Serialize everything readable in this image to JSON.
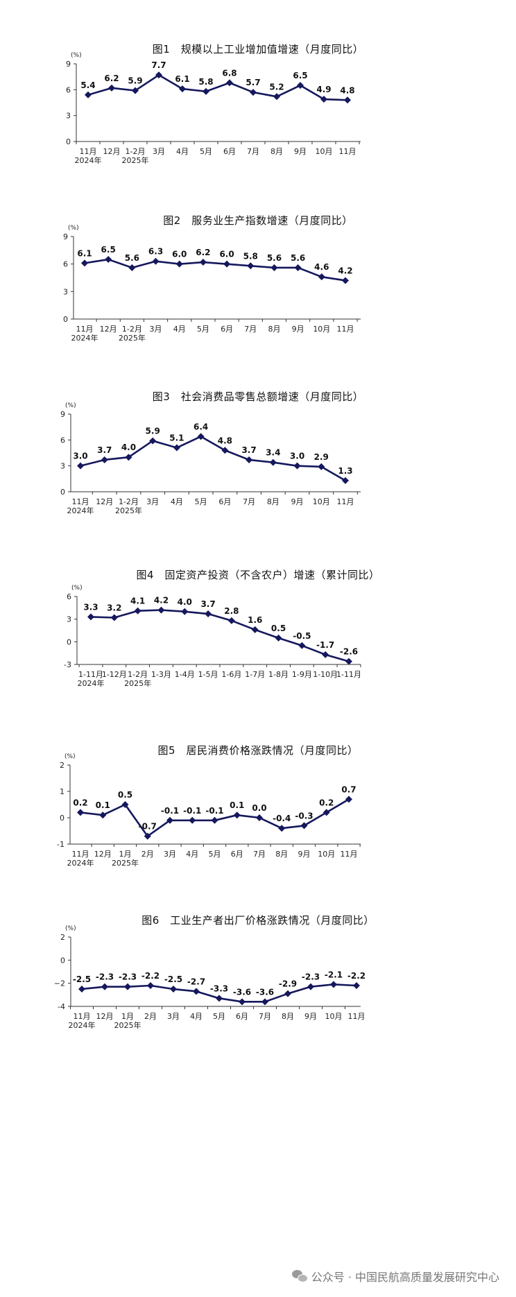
{
  "chart_data": [
    {
      "type": "line",
      "title": "图1　规模以上工业增加值增速（月度同比）",
      "unit": "(%)",
      "categories": [
        [
          "11月",
          "2024年"
        ],
        [
          "12月",
          ""
        ],
        [
          "1-2月",
          "2025年"
        ],
        [
          "3月",
          ""
        ],
        [
          "4月",
          ""
        ],
        [
          "5月",
          ""
        ],
        [
          "6月",
          ""
        ],
        [
          "7月",
          ""
        ],
        [
          "8月",
          ""
        ],
        [
          "9月",
          ""
        ],
        [
          "10月",
          ""
        ],
        [
          "11月",
          ""
        ]
      ],
      "values": [
        5.4,
        6.2,
        5.9,
        7.7,
        6.1,
        5.8,
        6.8,
        5.7,
        5.2,
        6.5,
        4.9,
        4.8
      ],
      "labels": [
        "5.4",
        "6.2",
        "5.9",
        "7.7",
        "6.1",
        "5.8",
        "6.8",
        "5.7",
        "5.2",
        "6.5",
        "4.9",
        "4.8"
      ],
      "yticks": [
        0,
        3,
        6,
        9
      ],
      "ylim": [
        0,
        9
      ]
    },
    {
      "type": "line",
      "title": "图2　服务业生产指数增速（月度同比）",
      "unit": "(%)",
      "categories": [
        [
          "11月",
          "2024年"
        ],
        [
          "12月",
          ""
        ],
        [
          "1-2月",
          "2025年"
        ],
        [
          "3月",
          ""
        ],
        [
          "4月",
          ""
        ],
        [
          "5月",
          ""
        ],
        [
          "6月",
          ""
        ],
        [
          "7月",
          ""
        ],
        [
          "8月",
          ""
        ],
        [
          "9月",
          ""
        ],
        [
          "10月",
          ""
        ],
        [
          "11月",
          ""
        ]
      ],
      "values": [
        6.1,
        6.5,
        5.6,
        6.3,
        6.0,
        6.2,
        6.0,
        5.8,
        5.6,
        5.6,
        4.6,
        4.2
      ],
      "labels": [
        "6.1",
        "6.5",
        "5.6",
        "6.3",
        "6.0",
        "6.2",
        "6.0",
        "5.8",
        "5.6",
        "5.6",
        "4.6",
        "4.2"
      ],
      "yticks": [
        0,
        3,
        6,
        9
      ],
      "ylim": [
        0,
        9
      ]
    },
    {
      "type": "line",
      "title": "图3　社会消费品零售总额增速（月度同比）",
      "unit": "(%)",
      "categories": [
        [
          "11月",
          "2024年"
        ],
        [
          "12月",
          ""
        ],
        [
          "1-2月",
          "2025年"
        ],
        [
          "3月",
          ""
        ],
        [
          "4月",
          ""
        ],
        [
          "5月",
          ""
        ],
        [
          "6月",
          ""
        ],
        [
          "7月",
          ""
        ],
        [
          "8月",
          ""
        ],
        [
          "9月",
          ""
        ],
        [
          "10月",
          ""
        ],
        [
          "11月",
          ""
        ]
      ],
      "values": [
        3.0,
        3.7,
        4.0,
        5.9,
        5.1,
        6.4,
        4.8,
        3.7,
        3.4,
        3.0,
        2.9,
        1.3
      ],
      "labels": [
        "3.0",
        "3.7",
        "4.0",
        "5.9",
        "5.1",
        "6.4",
        "4.8",
        "3.7",
        "3.4",
        "3.0",
        "2.9",
        "1.3"
      ],
      "yticks": [
        0,
        3,
        6,
        9
      ],
      "ylim": [
        0,
        9
      ]
    },
    {
      "type": "line",
      "title": "图4　固定资产投资（不含农户）增速（累计同比）",
      "unit": "(%)",
      "categories": [
        [
          "1-11月",
          "2024年"
        ],
        [
          "1-12月",
          ""
        ],
        [
          "1-2月",
          "2025年"
        ],
        [
          "1-3月",
          ""
        ],
        [
          "1-4月",
          ""
        ],
        [
          "1-5月",
          ""
        ],
        [
          "1-6月",
          ""
        ],
        [
          "1-7月",
          ""
        ],
        [
          "1-8月",
          ""
        ],
        [
          "1-9月",
          ""
        ],
        [
          "1-10月",
          ""
        ],
        [
          "1-11月",
          ""
        ]
      ],
      "values": [
        3.3,
        3.2,
        4.1,
        4.2,
        4.0,
        3.7,
        2.8,
        1.6,
        0.5,
        -0.5,
        -1.7,
        -2.6
      ],
      "labels": [
        "3.3",
        "3.2",
        "4.1",
        "4.2",
        "4.0",
        "3.7",
        "2.8",
        "1.6",
        "0.5",
        "-0.5",
        "-1.7",
        "-2.6"
      ],
      "yticks": [
        -3,
        0,
        3,
        6
      ],
      "ylim": [
        -3,
        6
      ]
    },
    {
      "type": "line",
      "title": "图5　居民消费价格涨跌情况（月度同比）",
      "unit": "(%)",
      "categories": [
        [
          "11月",
          "2024年"
        ],
        [
          "12月",
          ""
        ],
        [
          "1月",
          "2025年"
        ],
        [
          "2月",
          ""
        ],
        [
          "3月",
          ""
        ],
        [
          "4月",
          ""
        ],
        [
          "5月",
          ""
        ],
        [
          "6月",
          ""
        ],
        [
          "7月",
          ""
        ],
        [
          "8月",
          ""
        ],
        [
          "9月",
          ""
        ],
        [
          "10月",
          ""
        ],
        [
          "11月",
          ""
        ]
      ],
      "values": [
        0.2,
        0.1,
        0.5,
        -0.7,
        -0.1,
        -0.1,
        -0.1,
        0.1,
        0.0,
        -0.4,
        -0.3,
        0.2,
        0.7
      ],
      "labels": [
        "0.2",
        "0.1",
        "0.5",
        "-0.7",
        "-0.1",
        "-0.1",
        "-0.1",
        "0.1",
        "0.0",
        "-0.4",
        "-0.3",
        "0.2",
        "0.7"
      ],
      "yticks": [
        -1,
        0,
        1,
        2
      ],
      "ylim": [
        -1,
        2
      ]
    },
    {
      "type": "line",
      "title": "图6　工业生产者出厂价格涨跌情况（月度同比）",
      "unit": "(%)",
      "categories": [
        [
          "11月",
          "2024年"
        ],
        [
          "12月",
          ""
        ],
        [
          "1月",
          "2025年"
        ],
        [
          "2月",
          ""
        ],
        [
          "3月",
          ""
        ],
        [
          "4月",
          ""
        ],
        [
          "5月",
          ""
        ],
        [
          "6月",
          ""
        ],
        [
          "7月",
          ""
        ],
        [
          "8月",
          ""
        ],
        [
          "9月",
          ""
        ],
        [
          "10月",
          ""
        ],
        [
          "11月",
          ""
        ]
      ],
      "values": [
        -2.5,
        -2.3,
        -2.3,
        -2.2,
        -2.5,
        -2.7,
        -3.3,
        -3.6,
        -3.6,
        -2.9,
        -2.3,
        -2.1,
        -2.2
      ],
      "labels": [
        "-2.5",
        "-2.3",
        "-2.3",
        "-2.2",
        "-2.5",
        "-2.7",
        "-3.3",
        "-3.6",
        "-3.6",
        "-2.9",
        "-2.3",
        "-2.1",
        "-2.2"
      ],
      "yticks": [
        -4,
        -2,
        0,
        2
      ],
      "ytick_labels": [
        "-4",
        "−2",
        "0",
        "2"
      ],
      "ylim": [
        -4,
        2
      ]
    }
  ],
  "footer": {
    "text": "公众号 · 中国民航高质量发展研究中心",
    "icon": "wechat-icon",
    "color": "#777777"
  },
  "series_color": "#15185c"
}
